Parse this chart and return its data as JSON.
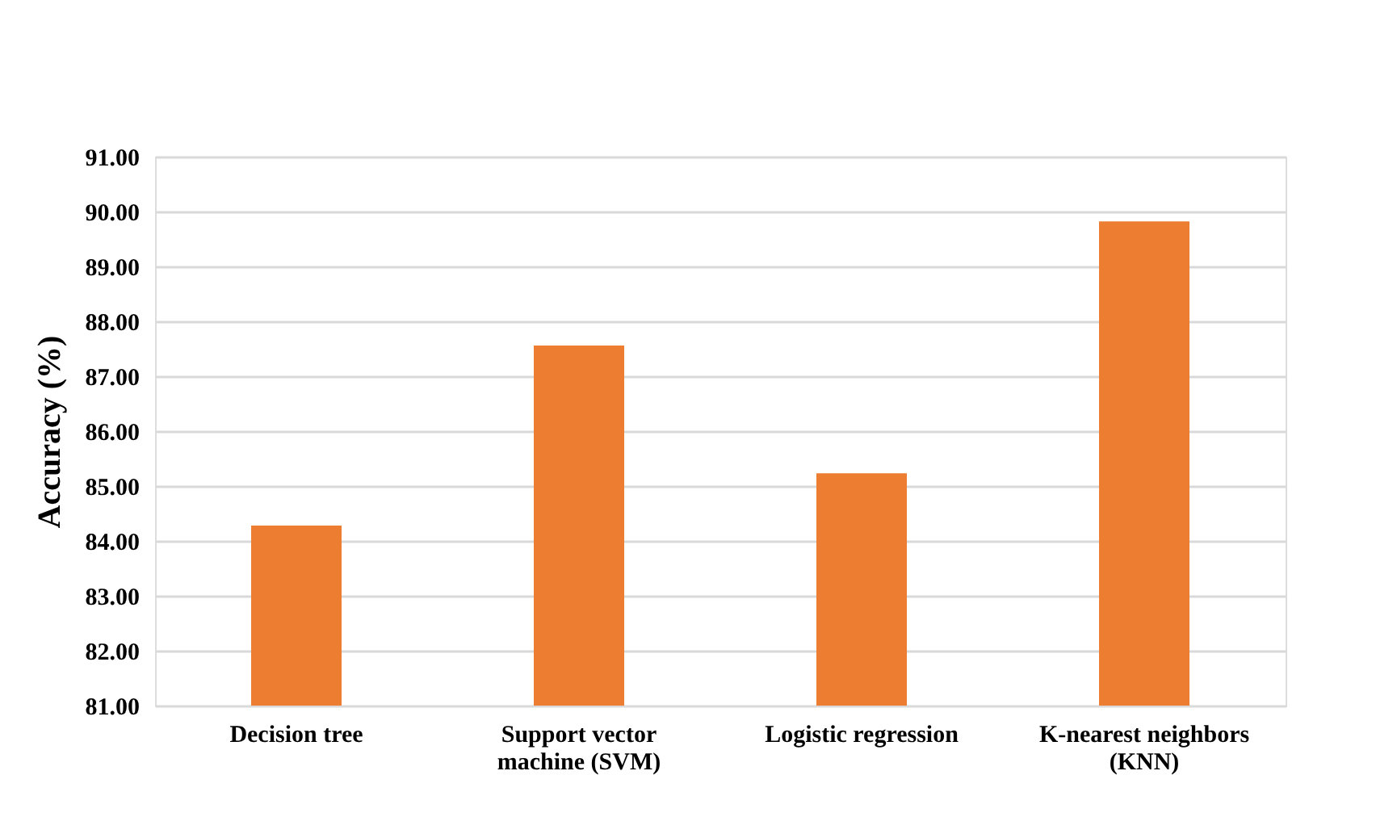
{
  "chart_data": {
    "type": "bar",
    "ylabel": "Accuracy  (%)",
    "categories": [
      "Decision tree",
      "Support vector machine (SVM)",
      "Logistic regression",
      "K-nearest neighbors (KNN)"
    ],
    "values": [
      84.28,
      87.56,
      85.23,
      89.82
    ],
    "color": "#ed7d31",
    "ylim": [
      81,
      91
    ],
    "yticks": [
      {
        "value": 81,
        "label": "81.00"
      },
      {
        "value": 82,
        "label": "82.00"
      },
      {
        "value": 83,
        "label": "83.00"
      },
      {
        "value": 84,
        "label": "84.00"
      },
      {
        "value": 85,
        "label": "85.00"
      },
      {
        "value": 86,
        "label": "86.00"
      },
      {
        "value": 87,
        "label": "87.00"
      },
      {
        "value": 88,
        "label": "88.00"
      },
      {
        "value": 89,
        "label": "89.00"
      },
      {
        "value": 90,
        "label": "90.00"
      },
      {
        "value": 91,
        "label": "91.00"
      }
    ],
    "grid": "y"
  }
}
